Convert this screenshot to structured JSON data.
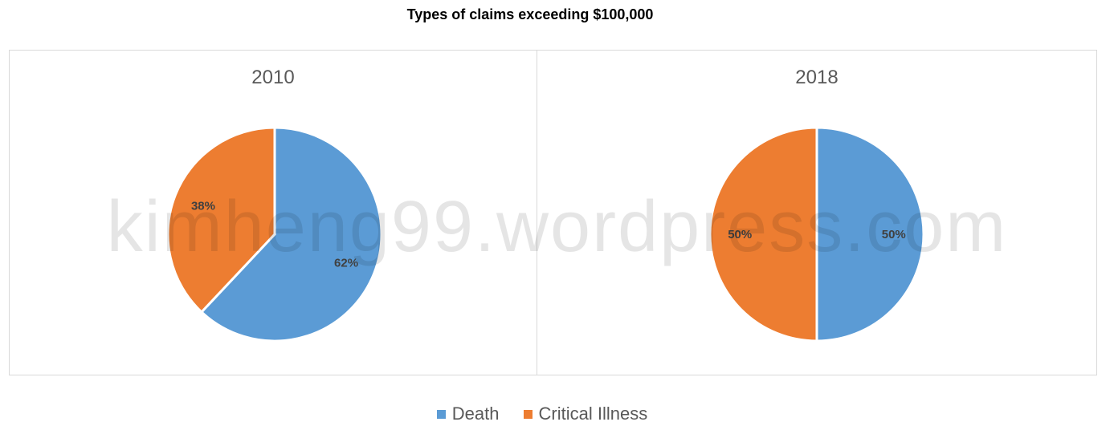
{
  "title": "Types of claims exceeding $100,000",
  "watermark": "kimheng99.wordpress.com",
  "colors": {
    "Death": "#5b9bd5",
    "Critical Illness": "#ed7d31"
  },
  "legend": [
    {
      "label": "Death",
      "color": "#5b9bd5"
    },
    {
      "label": "Critical Illness",
      "color": "#ed7d31"
    }
  ],
  "chart_data": [
    {
      "type": "pie",
      "title": "2010",
      "categories": [
        "Death",
        "Critical Illness"
      ],
      "values": [
        62,
        38
      ],
      "labels": [
        "62%",
        "38%"
      ]
    },
    {
      "type": "pie",
      "title": "2018",
      "categories": [
        "Death",
        "Critical Illness"
      ],
      "values": [
        50,
        50
      ],
      "labels": [
        "50%",
        "50%"
      ]
    }
  ]
}
